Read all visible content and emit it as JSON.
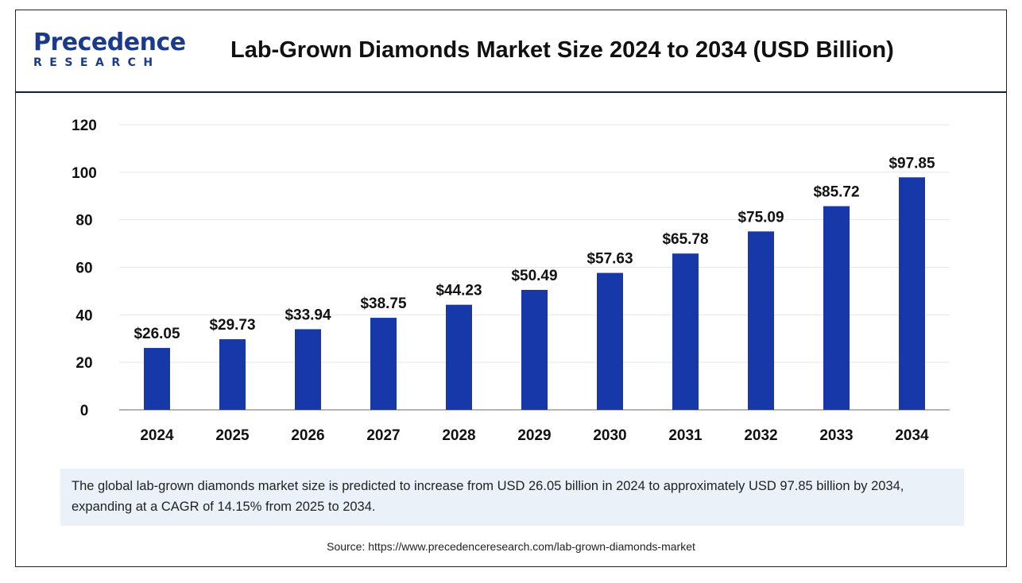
{
  "header": {
    "logo_top": "Precedence",
    "logo_bottom": "RESEARCH",
    "title": "Lab-Grown Diamonds Market Size 2024 to 2034 (USD Billion)"
  },
  "colors": {
    "bar": "#1638a8",
    "grid": "#e6e6e6",
    "axis": "#b5b5b5",
    "caption_bg": "#eaf1f9",
    "brand": "#1b3a8c"
  },
  "chart_data": {
    "type": "bar",
    "title": "Lab-Grown Diamonds Market Size 2024 to 2034 (USD Billion)",
    "categories": [
      "2024",
      "2025",
      "2026",
      "2027",
      "2028",
      "2029",
      "2030",
      "2031",
      "2032",
      "2033",
      "2034"
    ],
    "values": [
      26.05,
      29.73,
      33.94,
      38.75,
      44.23,
      50.49,
      57.63,
      65.78,
      75.09,
      85.72,
      97.85
    ],
    "data_labels": [
      "$26.05",
      "$29.73",
      "$33.94",
      "$38.75",
      "$44.23",
      "$50.49",
      "$57.63",
      "$65.78",
      "$75.09",
      "$85.72",
      "$97.85"
    ],
    "yticks": [
      0,
      20,
      40,
      60,
      80,
      100,
      120
    ],
    "ylim": [
      0,
      120
    ],
    "xlabel": "",
    "ylabel": "",
    "grid": true,
    "legend": "none"
  },
  "caption": "The global lab-grown diamonds market size is predicted to increase from USD 26.05 billion in 2024 to approximately USD 97.85 billion by 2034, expanding at a CAGR of 14.15% from 2025 to 2034.",
  "source": "Source: https://www.precedenceresearch.com/lab-grown-diamonds-market"
}
